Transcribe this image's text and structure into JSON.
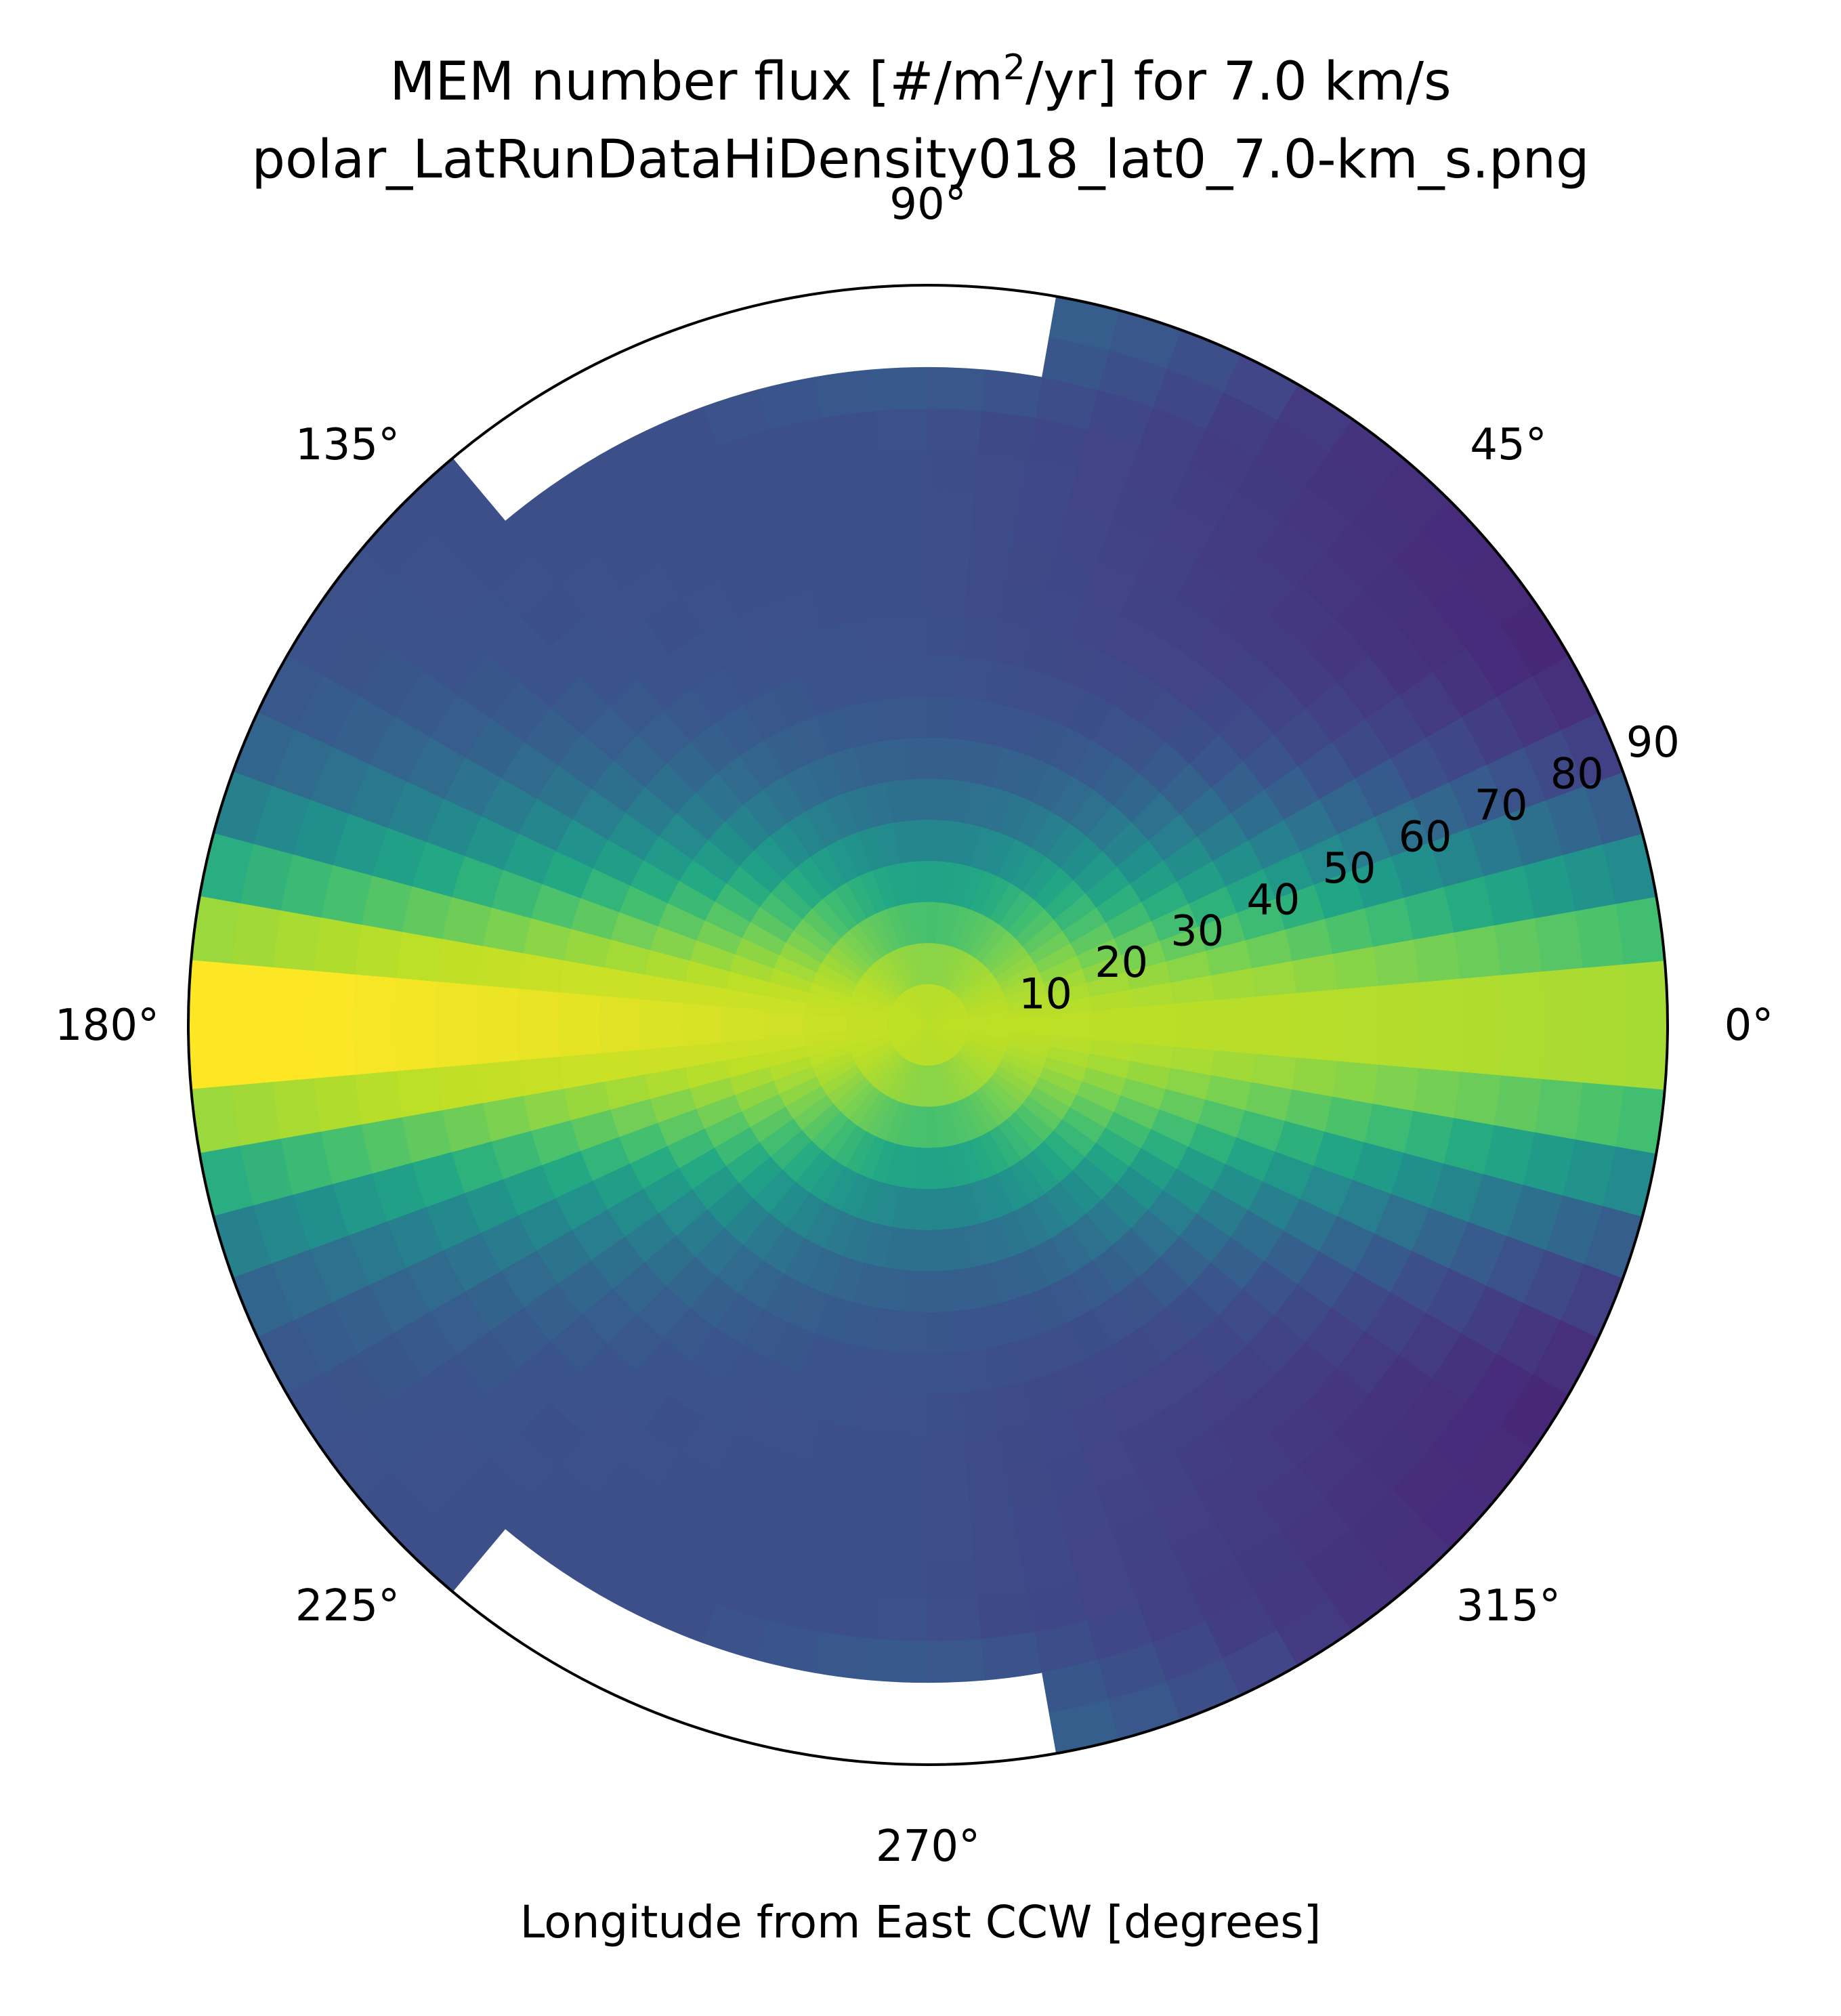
{
  "chart_data": {
    "type": "heatmap",
    "projection": "polar",
    "title_lines": [
      {
        "pre": "MEM number flux [#/m",
        "sup": "2",
        "post": "/yr] for 7.0 km/s"
      },
      {
        "pre": "polar_LatRunDataHiDensity018_lat0_7.0-km_s.png",
        "sup": "",
        "post": ""
      }
    ],
    "xlabel": "Longitude from East CCW [degrees]",
    "theta_direction": "counterclockwise",
    "theta_zero": "east",
    "theta_ticks": [
      {
        "angle": 0,
        "label": "0°"
      },
      {
        "angle": 45,
        "label": "45°"
      },
      {
        "angle": 90,
        "label": "90°"
      },
      {
        "angle": 135,
        "label": "135°"
      },
      {
        "angle": 180,
        "label": "180°"
      },
      {
        "angle": 225,
        "label": "225°"
      },
      {
        "angle": 270,
        "label": "270°"
      },
      {
        "angle": 315,
        "label": "315°"
      }
    ],
    "radial_range": [
      0,
      90
    ],
    "radial_ticks": [
      {
        "value": 10,
        "label": "10"
      },
      {
        "value": 20,
        "label": "20"
      },
      {
        "value": 30,
        "label": "30"
      },
      {
        "value": 40,
        "label": "40"
      },
      {
        "value": 50,
        "label": "50"
      },
      {
        "value": 60,
        "label": "60"
      },
      {
        "value": 70,
        "label": "70"
      },
      {
        "value": 80,
        "label": "80"
      },
      {
        "value": 90,
        "label": "90"
      }
    ],
    "grid": false,
    "colormap": "viridis",
    "theta_bin_deg": 5,
    "radial_bin_deg": 5,
    "value_scale": "relative 0-1",
    "blank_regions": [
      {
        "theta_range": [
          80,
          130
        ],
        "radial_range": [
          80,
          90
        ]
      },
      {
        "theta_range": [
          230,
          280
        ],
        "radial_range": [
          80,
          90
        ]
      }
    ]
  }
}
